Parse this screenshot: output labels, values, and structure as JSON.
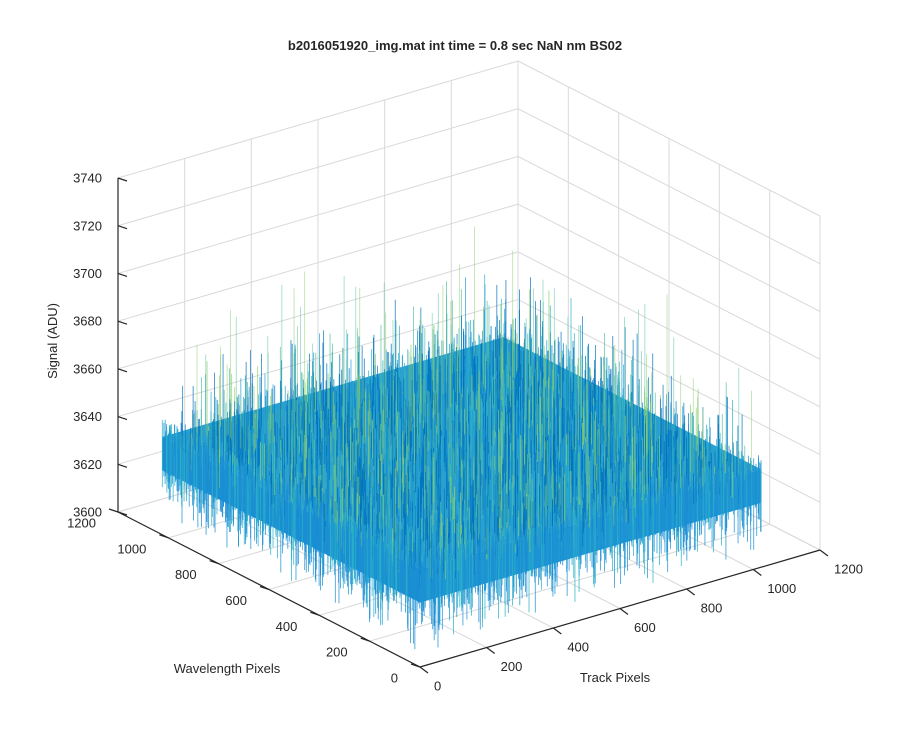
{
  "chart_data": {
    "type": "surface",
    "title": "b2016051920_img.mat int time = 0.8 sec  NaN nm BS02",
    "xlabel": "Track Pixels",
    "ylabel": "Wavelength Pixels",
    "zlabel": "Signal (ADU)",
    "xlim": [
      0,
      1200
    ],
    "ylim": [
      0,
      1200
    ],
    "zlim": [
      3600,
      3740
    ],
    "x_ticks": [
      0,
      200,
      400,
      600,
      800,
      1000,
      1200
    ],
    "y_ticks": [
      0,
      200,
      400,
      600,
      800,
      1000,
      1200
    ],
    "z_ticks": [
      3600,
      3620,
      3640,
      3660,
      3680,
      3700,
      3720,
      3740
    ],
    "x_tick_labels": [
      "0",
      "200",
      "400",
      "600",
      "800",
      "1000",
      "1200"
    ],
    "y_tick_labels": [
      "0",
      "200",
      "400",
      "600",
      "800",
      "1000",
      "1200"
    ],
    "z_tick_labels": [
      "3600",
      "3620",
      "3640",
      "3660",
      "3680",
      "3700",
      "3720",
      "3740"
    ],
    "surface": {
      "x_range": [
        0,
        1024
      ],
      "y_range": [
        0,
        1024
      ],
      "mean_signal": 3641,
      "noise_range": [
        3615,
        3700
      ]
    },
    "grid": true,
    "colormap": [
      "#0072bd",
      "#1f9bd6",
      "#2ab1c8",
      "#57c0a2",
      "#8ccf6e"
    ]
  }
}
